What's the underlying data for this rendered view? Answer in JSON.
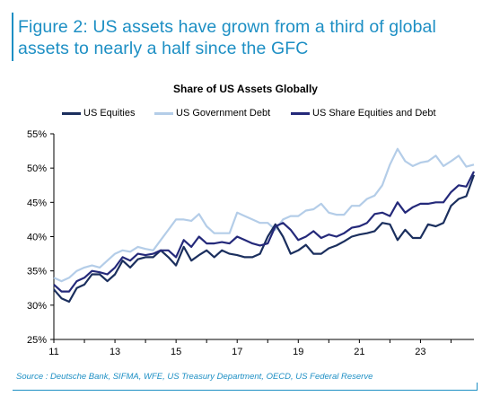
{
  "figure_title": "Figure 2: US assets have grown from a third of global assets to nearly a half since the GFC",
  "source": "Source : Deutsche Bank, SIFMA, WFE, US Treasury Department, OECD, US Federal Reserve",
  "colors": {
    "accent": "#1d8fc4"
  },
  "chart_data": {
    "type": "line",
    "title": "Share of US Assets Globally",
    "xlabel": "",
    "ylabel": "",
    "xlim": [
      2011,
      2024.75
    ],
    "ylim": [
      25,
      55
    ],
    "x_ticks": [
      {
        "value": 2011,
        "label": "11"
      },
      {
        "value": 2013,
        "label": "13"
      },
      {
        "value": 2015,
        "label": "15"
      },
      {
        "value": 2017,
        "label": "17"
      },
      {
        "value": 2019,
        "label": "19"
      },
      {
        "value": 2021,
        "label": "21"
      },
      {
        "value": 2023,
        "label": "23"
      }
    ],
    "y_ticks": [
      {
        "value": 25,
        "label": "25%"
      },
      {
        "value": 30,
        "label": "30%"
      },
      {
        "value": 35,
        "label": "35%"
      },
      {
        "value": 40,
        "label": "40%"
      },
      {
        "value": 45,
        "label": "45%"
      },
      {
        "value": 50,
        "label": "50%"
      },
      {
        "value": 55,
        "label": "55%"
      }
    ],
    "grid": false,
    "legend_position": "top",
    "x": [
      2011.0,
      2011.25,
      2011.5,
      2011.75,
      2012.0,
      2012.25,
      2012.5,
      2012.75,
      2013.0,
      2013.25,
      2013.5,
      2013.75,
      2014.0,
      2014.25,
      2014.5,
      2014.75,
      2015.0,
      2015.25,
      2015.5,
      2015.75,
      2016.0,
      2016.25,
      2016.5,
      2016.75,
      2017.0,
      2017.25,
      2017.5,
      2017.75,
      2018.0,
      2018.25,
      2018.5,
      2018.75,
      2019.0,
      2019.25,
      2019.5,
      2019.75,
      2020.0,
      2020.25,
      2020.5,
      2020.75,
      2021.0,
      2021.25,
      2021.5,
      2021.75,
      2022.0,
      2022.25,
      2022.5,
      2022.75,
      2023.0,
      2023.25,
      2023.5,
      2023.75,
      2024.0,
      2024.25,
      2024.5,
      2024.75
    ],
    "series": [
      {
        "name": "US Equities",
        "color": "#1b2f5e",
        "values": [
          32.3,
          31.0,
          30.5,
          32.5,
          33.0,
          34.5,
          34.5,
          33.5,
          34.5,
          36.5,
          35.5,
          36.7,
          37.0,
          37.0,
          38.0,
          37.0,
          35.8,
          38.5,
          36.5,
          37.3,
          38.0,
          37.0,
          38.0,
          37.5,
          37.3,
          37.0,
          37.0,
          37.5,
          40.0,
          41.8,
          40.0,
          37.5,
          38.0,
          38.8,
          37.5,
          37.5,
          38.3,
          38.7,
          39.3,
          40.0,
          40.3,
          40.5,
          40.8,
          42.0,
          41.8,
          39.5,
          41.0,
          39.8,
          39.8,
          41.8,
          41.5,
          42.0,
          44.5,
          45.5,
          45.9,
          49.0
        ]
      },
      {
        "name": "US Government Debt",
        "color": "#b4cde8",
        "values": [
          34.0,
          33.5,
          34.0,
          35.0,
          35.5,
          35.8,
          35.5,
          36.5,
          37.5,
          38.0,
          37.8,
          38.5,
          38.2,
          38.0,
          39.5,
          41.0,
          42.5,
          42.5,
          42.3,
          43.3,
          41.5,
          40.5,
          40.5,
          40.5,
          43.5,
          43.0,
          42.5,
          42.0,
          42.0,
          41.0,
          42.5,
          43.0,
          43.0,
          43.8,
          44.0,
          44.8,
          43.5,
          43.2,
          43.2,
          44.5,
          44.5,
          45.5,
          46.0,
          47.5,
          50.5,
          52.8,
          51.0,
          50.3,
          50.8,
          51.0,
          51.8,
          50.3,
          51.0,
          51.8,
          50.2,
          50.5
        ]
      },
      {
        "name": "US Share Equities and Debt",
        "color": "#24297a",
        "values": [
          33.0,
          32.0,
          32.0,
          33.5,
          34.0,
          35.0,
          34.8,
          34.5,
          35.5,
          37.0,
          36.5,
          37.5,
          37.3,
          37.5,
          38.0,
          38.0,
          37.0,
          39.5,
          38.5,
          40.0,
          39.0,
          39.0,
          39.2,
          39.0,
          40.0,
          39.5,
          39.0,
          38.7,
          39.0,
          41.5,
          42.0,
          41.0,
          39.5,
          40.0,
          40.8,
          39.8,
          40.3,
          40.0,
          40.5,
          41.3,
          41.5,
          42.0,
          43.3,
          43.5,
          43.0,
          45.0,
          43.5,
          44.3,
          44.8,
          44.8,
          45.0,
          45.0,
          46.5,
          47.5,
          47.3,
          49.5
        ]
      }
    ]
  }
}
